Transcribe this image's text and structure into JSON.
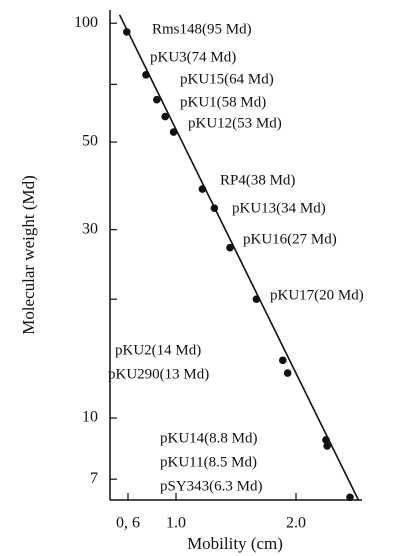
{
  "chart_data": {
    "type": "scatter",
    "x_label": "Mobility (cm)",
    "y_label": "Molecular weight (Md)",
    "x": [
      0.59,
      0.75,
      0.84,
      0.91,
      0.98,
      1.22,
      1.32,
      1.45,
      1.67,
      1.89,
      1.93,
      2.25,
      2.26,
      2.45
    ],
    "values": [
      95,
      74,
      64,
      58,
      53,
      38,
      34,
      27,
      20,
      14,
      13,
      8.8,
      8.5,
      6.3
    ],
    "point_labels": [
      "Rms148(95 Md)",
      "pKU3(74 Md)",
      "pKU15(64 Md)",
      "pKU1(58 Md)",
      "pKU12(53 Md)",
      "RP4(38 Md)",
      "pKU13(34 Md)",
      "pKU16(27 Md)",
      "pKU17(20 Md)",
      "pKU2(14 Md)",
      "pKU290(13 Md)",
      "pKU14(8.8 Md)",
      "pKU11(8.5 Md)",
      "pSY343(6.3 Md)"
    ],
    "fit_line": {
      "x": [
        0.53,
        2.52
      ],
      "y": [
        105,
        6.2
      ]
    },
    "color": "#111111",
    "xlim": [
      0.45,
      2.55
    ],
    "xticks": [
      {
        "value": 0.6,
        "label": "0, 6"
      },
      {
        "value": 1,
        "label": "1.0"
      },
      {
        "value": 2,
        "label": "2.0"
      }
    ],
    "ylim": [
      6.2,
      108
    ],
    "y_log": true,
    "yticks": [
      7,
      10,
      30,
      50,
      100
    ],
    "yminor_ticks": [
      20,
      70
    ]
  }
}
